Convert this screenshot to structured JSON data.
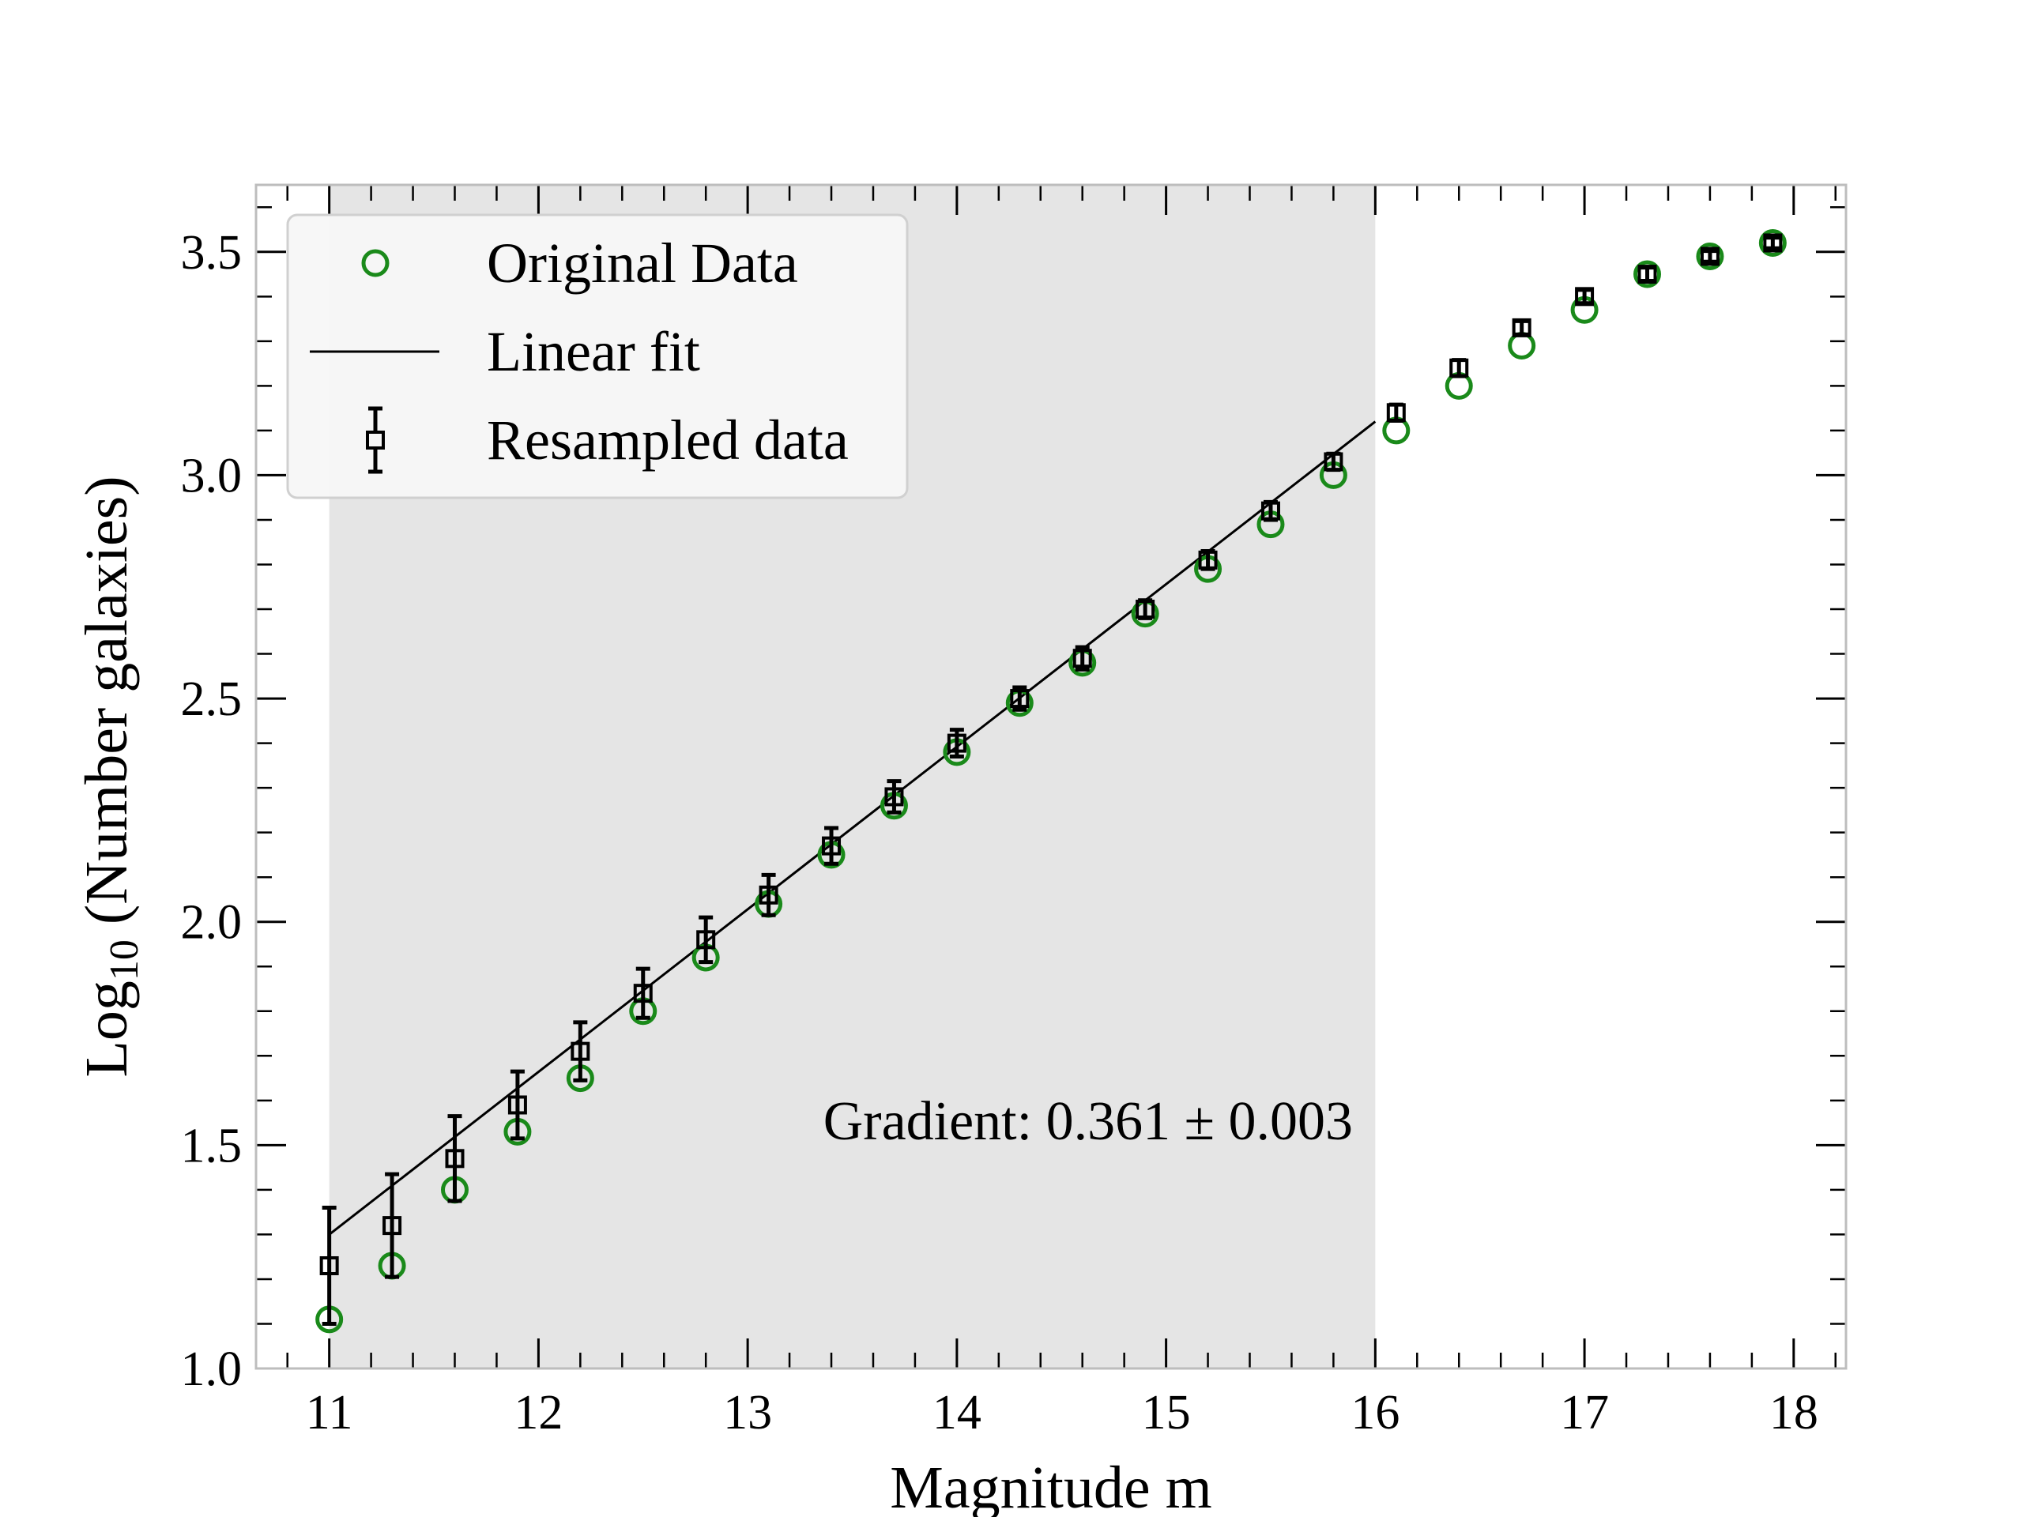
{
  "chart_data": {
    "type": "scatter",
    "xlabel": "Magnitude m",
    "ylabel": {
      "base": "Log",
      "subscript": "10",
      "rest": " (Number galaxies)"
    },
    "xlim": [
      10.65,
      18.25
    ],
    "ylim": [
      1.0,
      3.65
    ],
    "xticks": [
      11,
      12,
      13,
      14,
      15,
      16,
      17,
      18
    ],
    "xtick_labels": [
      "11",
      "12",
      "13",
      "14",
      "15",
      "16",
      "17",
      "18"
    ],
    "yticks": [
      1.0,
      1.5,
      2.0,
      2.5,
      3.0,
      3.5
    ],
    "ytick_labels": [
      "1.0",
      "1.5",
      "2.0",
      "2.5",
      "3.0",
      "3.5"
    ],
    "grid": false,
    "legend_position": "upper left",
    "shaded_region": {
      "x": [
        11.0,
        16.0
      ],
      "color": "#e5e5e5"
    },
    "annotation": "Gradient: 0.361 ± 0.003",
    "series": [
      {
        "name": "Original Data",
        "marker": "open-circle",
        "color": "#1a8a1a",
        "x": [
          11.0,
          11.3,
          11.6,
          11.9,
          12.2,
          12.5,
          12.8,
          13.1,
          13.4,
          13.7,
          14.0,
          14.3,
          14.6,
          14.9,
          15.2,
          15.5,
          15.8,
          16.1,
          16.4,
          16.7,
          17.0,
          17.3,
          17.6,
          17.9
        ],
        "y": [
          1.11,
          1.23,
          1.4,
          1.53,
          1.65,
          1.8,
          1.92,
          2.04,
          2.15,
          2.26,
          2.38,
          2.49,
          2.58,
          2.69,
          2.79,
          2.89,
          3.0,
          3.1,
          3.2,
          3.29,
          3.37,
          3.45,
          3.49,
          3.52
        ]
      },
      {
        "name": "Linear fit",
        "marker": "line",
        "color": "#000000",
        "x": [
          11.0,
          16.0
        ],
        "y": [
          1.3,
          3.12
        ]
      },
      {
        "name": "Resampled data",
        "marker": "open-square-errorbar",
        "color": "#000000",
        "x": [
          11.0,
          11.3,
          11.6,
          11.9,
          12.2,
          12.5,
          12.8,
          13.1,
          13.4,
          13.7,
          14.0,
          14.3,
          14.6,
          14.9,
          15.2,
          15.5,
          15.8,
          16.1,
          16.4,
          16.7,
          17.0,
          17.3,
          17.6,
          17.9
        ],
        "y": [
          1.23,
          1.32,
          1.47,
          1.59,
          1.71,
          1.84,
          1.96,
          2.06,
          2.17,
          2.28,
          2.4,
          2.5,
          2.59,
          2.7,
          2.81,
          2.92,
          3.03,
          3.14,
          3.24,
          3.33,
          3.4,
          3.45,
          3.49,
          3.52
        ],
        "yerr": [
          0.13,
          0.115,
          0.095,
          0.075,
          0.065,
          0.055,
          0.05,
          0.045,
          0.04,
          0.035,
          0.03,
          0.025,
          0.025,
          0.02,
          0.02,
          0.02,
          0.018,
          0.018,
          0.018,
          0.015,
          0.015,
          0.015,
          0.012,
          0.012
        ]
      }
    ]
  }
}
